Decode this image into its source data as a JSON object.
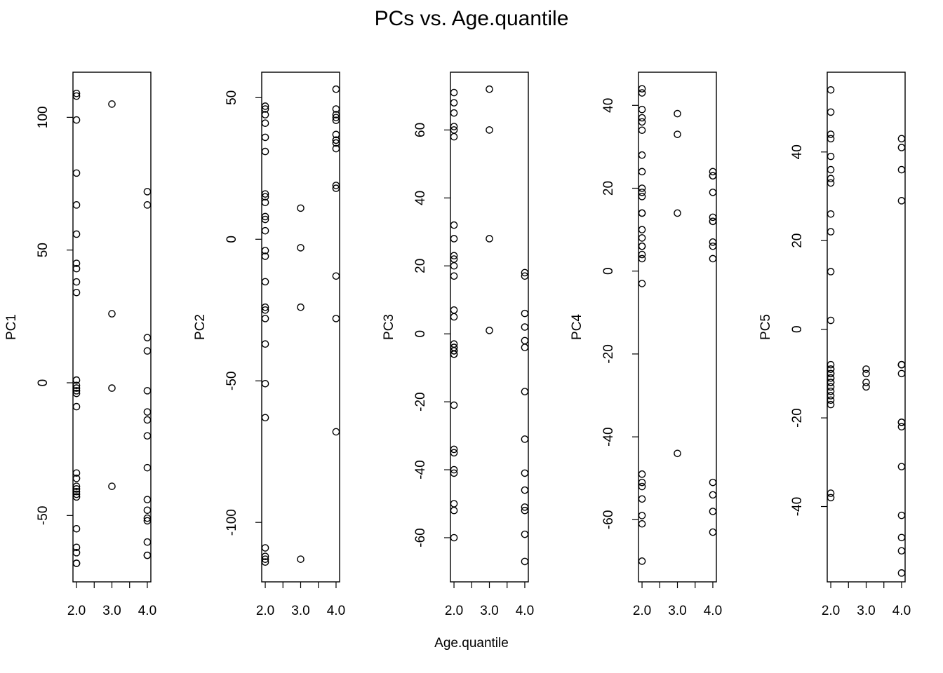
{
  "figure": {
    "title": "PCs vs. Age.quantile",
    "xlabel": "Age.quantile"
  },
  "chart_data": [
    {
      "type": "scatter",
      "ylabel": "PC1",
      "xlim": [
        1.9,
        4.1
      ],
      "ylim": [
        -75,
        117
      ],
      "xticks": [
        2.0,
        2.5,
        3.0,
        3.5,
        4.0
      ],
      "xtick_labels": [
        "2.0",
        "",
        "3.0",
        "",
        "4.0"
      ],
      "yticks": [
        -50,
        0,
        50,
        100
      ],
      "ytick_labels": [
        "-50",
        "0",
        "50",
        "100"
      ],
      "x": [
        2,
        2,
        2,
        2,
        2,
        2,
        2,
        2,
        2,
        2,
        2,
        2,
        2,
        2,
        2,
        2,
        2,
        2,
        2,
        2,
        2,
        2,
        2,
        2,
        2,
        2,
        2,
        2,
        3,
        3,
        3,
        3,
        4,
        4,
        4,
        4,
        4,
        4,
        4,
        4,
        4,
        4,
        4,
        4,
        4,
        4,
        4,
        4
      ],
      "y": [
        109,
        108,
        99,
        79,
        67,
        56,
        45,
        43,
        38,
        34,
        1,
        -1,
        -2,
        -3,
        -4,
        -9,
        -34,
        -36,
        -39,
        -40,
        -42,
        -43,
        -55,
        -62,
        -64,
        -68,
        -68,
        -41,
        105,
        26,
        -2,
        -39,
        72,
        67,
        17,
        12,
        -3,
        -11,
        -14,
        -20,
        -32,
        -44,
        -48,
        -51,
        -52,
        -60,
        -65,
        -65
      ]
    },
    {
      "type": "scatter",
      "ylabel": "PC2",
      "xlim": [
        1.9,
        4.1
      ],
      "ylim": [
        -121,
        59
      ],
      "xticks": [
        2.0,
        2.5,
        3.0,
        3.5,
        4.0
      ],
      "xtick_labels": [
        "2.0",
        "",
        "3.0",
        "",
        "4.0"
      ],
      "yticks": [
        -100,
        -50,
        0,
        50
      ],
      "ytick_labels": [
        "-100",
        "-50",
        "0",
        "50"
      ],
      "x": [
        2,
        2,
        2,
        2,
        2,
        2,
        2,
        2,
        2,
        2,
        2,
        2,
        2,
        2,
        2,
        2,
        2,
        2,
        2,
        2,
        2,
        2,
        2,
        2,
        2,
        3,
        3,
        3,
        3,
        4,
        4,
        4,
        4,
        4,
        4,
        4,
        4,
        4,
        4,
        4,
        4,
        4,
        4,
        4
      ],
      "y": [
        47,
        46,
        44,
        41,
        36,
        31,
        16,
        15,
        13,
        8,
        7,
        3,
        -4,
        -6,
        -15,
        -24,
        -25,
        -28,
        -37,
        -51,
        -63,
        -109,
        -112,
        -114,
        -113,
        11,
        -3,
        -24,
        -113,
        53,
        46,
        43,
        42,
        37,
        35,
        34,
        32,
        19,
        18,
        -13,
        -28,
        -68,
        44,
        35
      ]
    },
    {
      "type": "scatter",
      "ylabel": "PC3",
      "xlim": [
        1.9,
        4.1
      ],
      "ylim": [
        -73,
        77
      ],
      "xticks": [
        2.0,
        2.5,
        3.0,
        3.5,
        4.0
      ],
      "xtick_labels": [
        "2.0",
        "",
        "3.0",
        "",
        "4.0"
      ],
      "yticks": [
        -60,
        -40,
        -20,
        0,
        20,
        40,
        60
      ],
      "ytick_labels": [
        "-60",
        "-40",
        "-20",
        "0",
        "20",
        "40",
        "60"
      ],
      "x": [
        2,
        2,
        2,
        2,
        2,
        2,
        2,
        2,
        2,
        2,
        2,
        2,
        2,
        2,
        2,
        2,
        2,
        2,
        2,
        2,
        2,
        2,
        2,
        2,
        2,
        2,
        2,
        2,
        2,
        3,
        3,
        3,
        3,
        4,
        4,
        4,
        4,
        4,
        4,
        4,
        4,
        4,
        4,
        4,
        4,
        4,
        4
      ],
      "y": [
        71,
        68,
        65,
        61,
        60,
        58,
        32,
        28,
        23,
        22,
        20,
        17,
        7,
        5,
        -3,
        -4,
        -5,
        -6,
        -21,
        -34,
        -35,
        -40,
        -41,
        -50,
        -52,
        -60,
        -4,
        -5,
        -6,
        72,
        60,
        28,
        1,
        18,
        17,
        6,
        2,
        -2,
        -4,
        -17,
        -31,
        -41,
        -46,
        -51,
        -52,
        -59,
        -67
      ]
    },
    {
      "type": "scatter",
      "ylabel": "PC4",
      "xlim": [
        1.9,
        4.1
      ],
      "ylim": [
        -75,
        48
      ],
      "xticks": [
        2.0,
        2.5,
        3.0,
        3.5,
        4.0
      ],
      "xtick_labels": [
        "2.0",
        "",
        "3.0",
        "",
        "4.0"
      ],
      "yticks": [
        -60,
        -40,
        -20,
        0,
        20,
        40
      ],
      "ytick_labels": [
        "-60",
        "-40",
        "-20",
        "0",
        "20",
        "40"
      ],
      "x": [
        2,
        2,
        2,
        2,
        2,
        2,
        2,
        2,
        2,
        2,
        2,
        2,
        2,
        2,
        2,
        2,
        2,
        2,
        2,
        2,
        2,
        2,
        2,
        2,
        2,
        2,
        2,
        3,
        3,
        3,
        3,
        4,
        4,
        4,
        4,
        4,
        4,
        4,
        4,
        4,
        4,
        4,
        4,
        4,
        4
      ],
      "y": [
        44,
        43,
        39,
        37,
        36,
        34,
        28,
        24,
        20,
        19,
        18,
        14,
        10,
        8,
        6,
        4,
        3,
        -3,
        -49,
        -51,
        -52,
        -55,
        -59,
        -61,
        -70,
        14,
        6,
        38,
        33,
        14,
        -44,
        24,
        23,
        23,
        19,
        13,
        12,
        12,
        7,
        6,
        3,
        -51,
        -54,
        -58,
        -63
      ]
    },
    {
      "type": "scatter",
      "ylabel": "PC5",
      "xlim": [
        1.9,
        4.1
      ],
      "ylim": [
        -57,
        58
      ],
      "xticks": [
        2.0,
        2.5,
        3.0,
        3.5,
        4.0
      ],
      "xtick_labels": [
        "2.0",
        "",
        "3.0",
        "",
        "4.0"
      ],
      "yticks": [
        -40,
        -20,
        0,
        20,
        40
      ],
      "ytick_labels": [
        "-40",
        "-20",
        "0",
        "20",
        "40"
      ],
      "x": [
        2,
        2,
        2,
        2,
        2,
        2,
        2,
        2,
        2,
        2,
        2,
        2,
        2,
        2,
        2,
        2,
        2,
        2,
        2,
        2,
        2,
        2,
        2,
        2,
        2,
        2,
        2,
        2,
        3,
        3,
        3,
        3,
        4,
        4,
        4,
        4,
        4,
        4,
        4,
        4,
        4,
        4,
        4,
        4,
        4,
        4,
        4,
        4
      ],
      "y": [
        54,
        49,
        44,
        43,
        39,
        36,
        34,
        33,
        26,
        22,
        13,
        2,
        -8,
        -9,
        -10,
        -11,
        -11,
        -12,
        -12,
        -14,
        -15,
        -17,
        -37,
        -38,
        -10,
        -9,
        -13,
        -16,
        -9,
        -10,
        -12,
        -13,
        43,
        41,
        36,
        29,
        -8,
        -8,
        -10,
        -21,
        -21,
        -22,
        -31,
        -42,
        -47,
        -50,
        -55,
        -8
      ]
    }
  ]
}
